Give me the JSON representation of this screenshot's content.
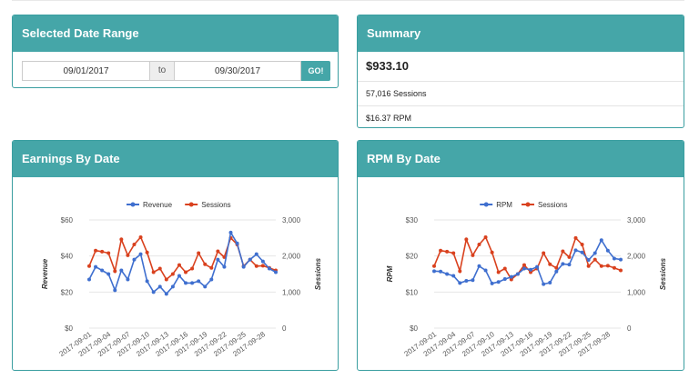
{
  "date_panel": {
    "title": "Selected Date Range",
    "start_value": "09/01/2017",
    "to_label": "to",
    "end_value": "09/30/2017",
    "go_label": "GO!"
  },
  "summary": {
    "title": "Summary",
    "earnings": "$933.10",
    "sessions": "57,016 Sessions",
    "rpm": "$16.37 RPM"
  },
  "earnings_panel": {
    "title": "Earnings By Date"
  },
  "rpm_panel": {
    "title": "RPM By Date"
  },
  "colors": {
    "accent": "#45a6a8",
    "blue": "#3f6fcf",
    "red": "#d9411e"
  },
  "chart_data": [
    {
      "type": "line",
      "x": [
        "2017-09-01",
        "2017-09-02",
        "2017-09-03",
        "2017-09-04",
        "2017-09-05",
        "2017-09-06",
        "2017-09-07",
        "2017-09-08",
        "2017-09-09",
        "2017-09-10",
        "2017-09-11",
        "2017-09-12",
        "2017-09-13",
        "2017-09-14",
        "2017-09-15",
        "2017-09-16",
        "2017-09-17",
        "2017-09-18",
        "2017-09-19",
        "2017-09-20",
        "2017-09-21",
        "2017-09-22",
        "2017-09-23",
        "2017-09-24",
        "2017-09-25",
        "2017-09-26",
        "2017-09-27",
        "2017-09-28",
        "2017-09-29",
        "2017-09-30"
      ],
      "x_ticks": [
        "2017-09-01",
        "2017-09-04",
        "2017-09-07",
        "2017-09-10",
        "2017-09-13",
        "2017-09-16",
        "2017-09-19",
        "2017-09-22",
        "2017-09-25",
        "2017-09-28"
      ],
      "series": [
        {
          "name": "Revenue",
          "axis": "left",
          "color": "#3f6fcf",
          "values": [
            27,
            34,
            32,
            30,
            21,
            32,
            27,
            38,
            41,
            26,
            20,
            23,
            19,
            23,
            29,
            25,
            25,
            26,
            23,
            27,
            38,
            34,
            53,
            47,
            34,
            38,
            41,
            37,
            33,
            31
          ]
        },
        {
          "name": "Sessions",
          "axis": "right",
          "color": "#d9411e",
          "values": [
            1720,
            2150,
            2120,
            2080,
            1580,
            2460,
            2020,
            2320,
            2520,
            2100,
            1550,
            1650,
            1350,
            1500,
            1750,
            1550,
            1650,
            2080,
            1770,
            1670,
            2130,
            1970,
            2500,
            2320,
            1720,
            1900,
            1720,
            1730,
            1670,
            1600
          ]
        }
      ],
      "ylabel_left": "Revenue",
      "ylim_left": [
        0,
        60
      ],
      "yticks_left": [
        "$0",
        "$20",
        "$40",
        "$60"
      ],
      "ylabel_right": "Sessions",
      "ylim_right": [
        0,
        3000
      ],
      "yticks_right": [
        "0",
        "1,000",
        "2,000",
        "3,000"
      ],
      "grid": true,
      "legend": "top-center"
    },
    {
      "type": "line",
      "x": [
        "2017-09-01",
        "2017-09-02",
        "2017-09-03",
        "2017-09-04",
        "2017-09-05",
        "2017-09-06",
        "2017-09-07",
        "2017-09-08",
        "2017-09-09",
        "2017-09-10",
        "2017-09-11",
        "2017-09-12",
        "2017-09-13",
        "2017-09-14",
        "2017-09-15",
        "2017-09-16",
        "2017-09-17",
        "2017-09-18",
        "2017-09-19",
        "2017-09-20",
        "2017-09-21",
        "2017-09-22",
        "2017-09-23",
        "2017-09-24",
        "2017-09-25",
        "2017-09-26",
        "2017-09-27",
        "2017-09-28",
        "2017-09-29",
        "2017-09-30"
      ],
      "x_ticks": [
        "2017-09-01",
        "2017-09-04",
        "2017-09-07",
        "2017-09-10",
        "2017-09-13",
        "2017-09-16",
        "2017-09-19",
        "2017-09-22",
        "2017-09-25",
        "2017-09-28"
      ],
      "series": [
        {
          "name": "RPM",
          "axis": "left",
          "color": "#3f6fcf",
          "values": [
            15.8,
            15.7,
            15.0,
            14.5,
            12.5,
            13.1,
            13.3,
            17.2,
            16.0,
            12.4,
            12.8,
            13.6,
            14.2,
            15.0,
            16.5,
            16.2,
            17.0,
            12.2,
            12.6,
            15.7,
            17.8,
            17.6,
            21.6,
            21.0,
            18.9,
            20.8,
            24.4,
            21.5,
            19.3,
            19.0
          ]
        },
        {
          "name": "Sessions",
          "axis": "right",
          "color": "#d9411e",
          "values": [
            1720,
            2150,
            2120,
            2080,
            1580,
            2460,
            2020,
            2320,
            2520,
            2100,
            1550,
            1650,
            1350,
            1500,
            1750,
            1550,
            1650,
            2080,
            1770,
            1670,
            2130,
            1970,
            2500,
            2320,
            1720,
            1900,
            1720,
            1730,
            1670,
            1600
          ]
        }
      ],
      "ylabel_left": "RPM",
      "ylim_left": [
        0,
        30
      ],
      "yticks_left": [
        "$0",
        "$10",
        "$20",
        "$30"
      ],
      "ylabel_right": "Sessions",
      "ylim_right": [
        0,
        3000
      ],
      "yticks_right": [
        "0",
        "1,000",
        "2,000",
        "3,000"
      ],
      "grid": true,
      "legend": "top-center"
    }
  ]
}
